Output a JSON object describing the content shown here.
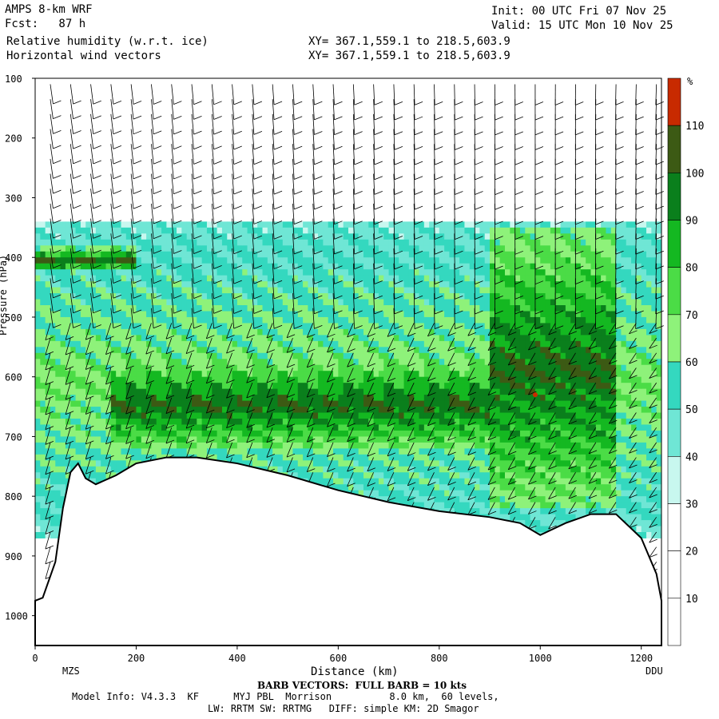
{
  "header": {
    "model": "AMPS 8-km WRF",
    "forecast": "Fcst:   87 h",
    "field1": "Relative humidity (w.r.t. ice)",
    "field2": "Horizontal wind vectors",
    "xy1": "XY= 367.1,559.1 to 218.5,603.9",
    "xy2": "XY= 367.1,559.1 to 218.5,603.9",
    "init": "Init: 00 UTC Fri 07 Nov 25",
    "valid": "Valid: 15 UTC Mon 10 Nov 25"
  },
  "footer": {
    "barb_note": "BARB VECTORS:  FULL BARB = 10 kts",
    "model_info": "Model Info: V4.3.3  KF      MYJ PBL  Morrison          8.0 km,  60 levels,",
    "physics": "LW: RRTM SW: RRTMG   DIFF: simple KM: 2D Smagor"
  },
  "chart_data": {
    "type": "heatmap",
    "title": "Relative humidity (w.r.t. ice)",
    "xlabel": "Distance (km)",
    "ylabel": "Pressure (hPa)",
    "xlim": [
      0,
      1240
    ],
    "ylim": [
      1050,
      100
    ],
    "x_ticks": [
      0,
      200,
      400,
      600,
      800,
      1000,
      1200
    ],
    "y_ticks": [
      100,
      200,
      300,
      400,
      500,
      600,
      700,
      800,
      900,
      1000
    ],
    "x_endpoint_labels": {
      "left": "MZS",
      "right": "DDU"
    },
    "colorbar": {
      "unit": "%",
      "levels": [
        10,
        20,
        30,
        40,
        50,
        60,
        70,
        80,
        90,
        100,
        110
      ],
      "colors": [
        "#ffffff",
        "#ffffff",
        "#ffffff",
        "#c8f7ef",
        "#6fe6d5",
        "#34d8bf",
        "#8ef27a",
        "#4bdc46",
        "#14b821",
        "#0a7f1c",
        "#3c5a14",
        "#c82a00"
      ]
    },
    "terrain_pressure": [
      [
        0,
        975
      ],
      [
        15,
        970
      ],
      [
        40,
        910
      ],
      [
        55,
        820
      ],
      [
        70,
        760
      ],
      [
        85,
        745
      ],
      [
        100,
        770
      ],
      [
        120,
        780
      ],
      [
        160,
        765
      ],
      [
        200,
        745
      ],
      [
        260,
        735
      ],
      [
        320,
        735
      ],
      [
        400,
        745
      ],
      [
        500,
        765
      ],
      [
        600,
        790
      ],
      [
        700,
        810
      ],
      [
        800,
        825
      ],
      [
        900,
        835
      ],
      [
        960,
        845
      ],
      [
        1000,
        865
      ],
      [
        1050,
        845
      ],
      [
        1100,
        830
      ],
      [
        1150,
        830
      ],
      [
        1200,
        870
      ],
      [
        1230,
        930
      ],
      [
        1240,
        975
      ]
    ],
    "moist_bands": [
      {
        "x0": 0,
        "x1": 1240,
        "p_top": 340,
        "p_bot": 870,
        "rh": 70
      },
      {
        "x0": 150,
        "x1": 900,
        "p_top": 565,
        "p_bot": 720,
        "rh": 100
      },
      {
        "x0": 900,
        "x1": 1150,
        "p_top": 350,
        "p_bot": 820,
        "rh": 100
      },
      {
        "x0": 0,
        "x1": 200,
        "p_top": 380,
        "p_bot": 420,
        "rh": 100
      },
      {
        "x0": 150,
        "x1": 700,
        "p_top": 440,
        "p_bot": 530,
        "rh": 40
      }
    ],
    "max_marker": {
      "x": 990,
      "p": 630,
      "rh": 115
    }
  }
}
